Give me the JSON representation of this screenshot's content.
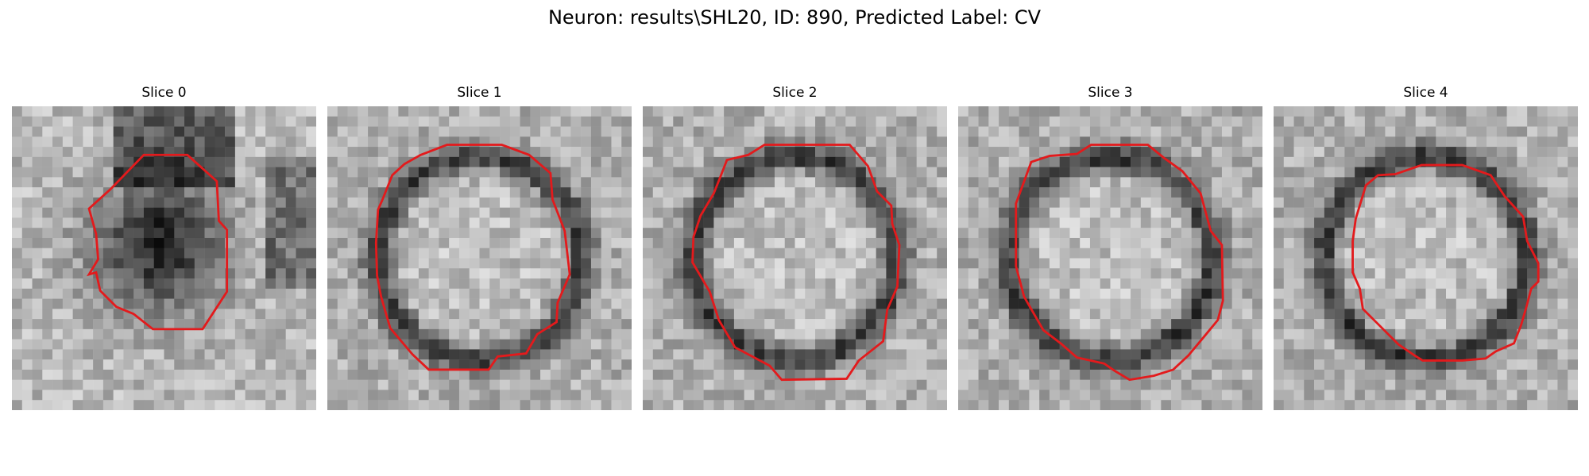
{
  "figure": {
    "title": "Neuron: results\\SHL20, ID: 890, Predicted Label: CV"
  },
  "panels": [
    {
      "title": "Slice 0",
      "center": "dark"
    },
    {
      "title": "Slice 1",
      "center": "light"
    },
    {
      "title": "Slice 2",
      "center": "light"
    },
    {
      "title": "Slice 3",
      "center": "light"
    },
    {
      "title": "Slice 4",
      "center": "light"
    }
  ],
  "colors": {
    "contour": "#e31a1c",
    "colormap": "grayscale"
  }
}
